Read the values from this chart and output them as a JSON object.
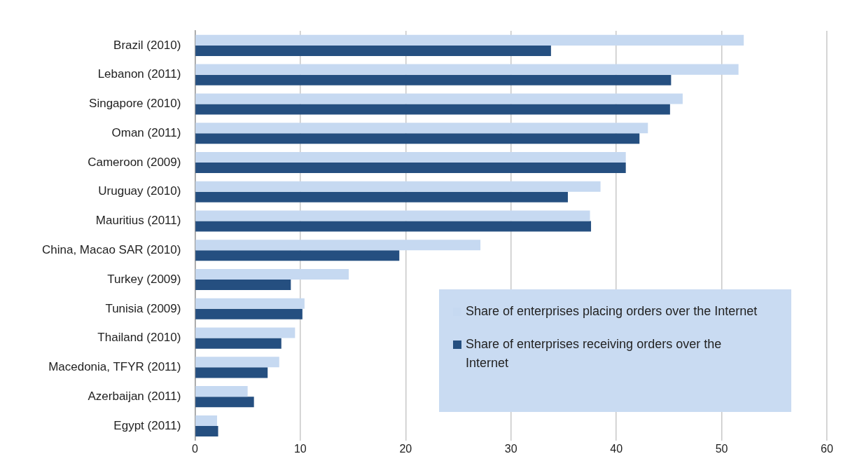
{
  "chart_data": {
    "type": "bar",
    "orientation": "horizontal",
    "categories": [
      "Brazil (2010)",
      "Lebanon (2011)",
      "Singapore (2010)",
      "Oman (2011)",
      "Cameroon (2009)",
      "Uruguay (2010)",
      "Mauritius (2011)",
      "China, Macao SAR (2010)",
      "Turkey (2009)",
      "Tunisia (2009)",
      "Thailand (2010)",
      "Macedonia, TFYR (2011)",
      "Azerbaijan (2011)",
      "Egypt (2011)"
    ],
    "series": [
      {
        "name": "Share of enterprises placing orders over the Internet",
        "color": "#c6d9f1",
        "values": [
          52.1,
          51.6,
          46.3,
          43.0,
          40.9,
          38.5,
          37.5,
          27.1,
          14.6,
          10.4,
          9.5,
          8.0,
          5.0,
          2.1
        ]
      },
      {
        "name": "Share of enterprises receiving orders over the Internet",
        "color": "#254f80",
        "values": [
          33.8,
          45.2,
          45.1,
          42.2,
          40.9,
          35.4,
          37.6,
          19.4,
          9.1,
          10.2,
          8.2,
          6.9,
          5.6,
          2.2
        ]
      }
    ],
    "xlim": [
      0,
      60
    ],
    "xticks": [
      0,
      10,
      20,
      30,
      40,
      50,
      60
    ],
    "grid": "x",
    "legend": "bottom right"
  }
}
